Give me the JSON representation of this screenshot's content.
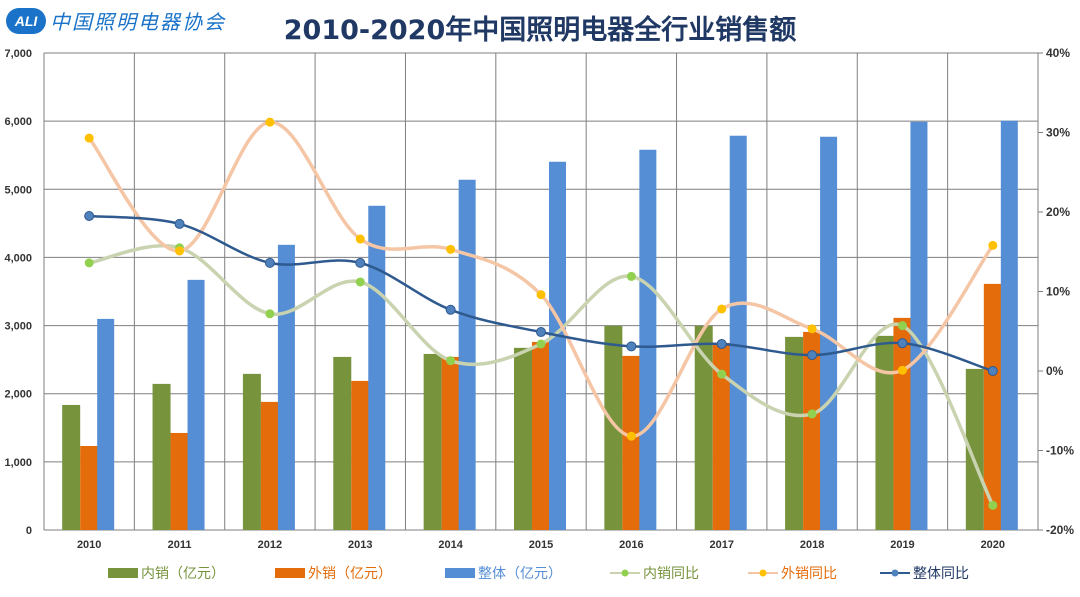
{
  "logo": {
    "mark": "ALI",
    "text": "中国照明电器协会"
  },
  "chart_data": {
    "type": "bar+line",
    "title": "2010-2020年中国照明电器全行业销售额",
    "categories": [
      "2010",
      "2011",
      "2012",
      "2013",
      "2014",
      "2015",
      "2016",
      "2017",
      "2018",
      "2019",
      "2020"
    ],
    "y_left": {
      "range": [
        0,
        7000
      ],
      "ticks": [
        "0",
        "1,000",
        "2,000",
        "3,000",
        "4,000",
        "5,000",
        "6,000",
        "7,000"
      ]
    },
    "y_right": {
      "range": [
        -20,
        40
      ],
      "ticks": [
        "-20%",
        "-10%",
        "0%",
        "10%",
        "20%",
        "30%",
        "40%"
      ]
    },
    "grid": true,
    "legend_position": "bottom",
    "bar_series": [
      {
        "name": "内销（亿元）",
        "color": "#77933c",
        "values": [
          1835,
          2144,
          2291,
          2540,
          2584,
          2673,
          2996,
          2996,
          2834,
          2849,
          2364
        ]
      },
      {
        "name": "外销（亿元）",
        "color": "#e46c0a",
        "values": [
          1233,
          1424,
          1880,
          2188,
          2540,
          2760,
          2555,
          2745,
          2907,
          3113,
          3612
        ]
      },
      {
        "name": "整体（亿元）",
        "color": "#558ed5",
        "values": [
          3098,
          3671,
          4185,
          4758,
          5140,
          5404,
          5580,
          5786,
          5771,
          5991,
          6006
        ]
      }
    ],
    "line_series": [
      {
        "name": "内销同比",
        "axis": "right",
        "unit": "%",
        "color": "#c9d3b0",
        "marker": "#92d050",
        "values": [
          13.6,
          15.5,
          7.2,
          11.2,
          1.3,
          3.4,
          11.9,
          -0.4,
          -5.4,
          5.7,
          -16.9
        ]
      },
      {
        "name": "外销同比",
        "axis": "right",
        "unit": "%",
        "color": "#f5c6a5",
        "marker": "#ffc000",
        "values": [
          29.3,
          15.1,
          31.3,
          16.6,
          15.3,
          9.6,
          -8.2,
          7.8,
          5.3,
          0.1,
          15.8
        ]
      },
      {
        "name": "整体同比",
        "axis": "right",
        "unit": "%",
        "color": "#2e5a8f",
        "marker": "#4f81bd",
        "values": [
          19.5,
          18.5,
          13.6,
          13.6,
          7.7,
          4.9,
          3.1,
          3.4,
          2.0,
          3.5,
          0.0
        ]
      }
    ],
    "legend_text_colors": [
      "#77933c",
      "#e46c0a",
      "#558ed5",
      "#77933c",
      "#e46c0a",
      "#1f3864"
    ]
  }
}
